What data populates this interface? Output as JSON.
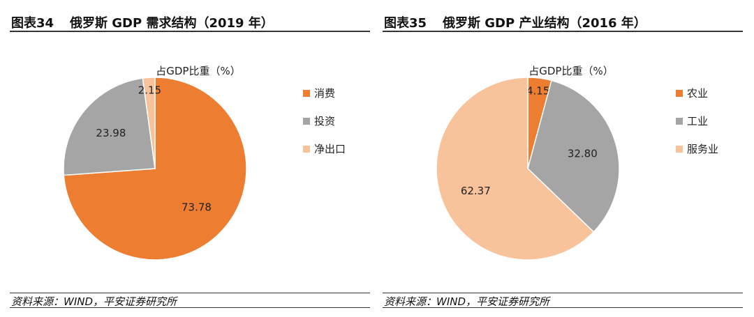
{
  "panels": [
    {
      "figure_label": "图表34",
      "figure_title": "俄罗斯 GDP 需求结构（2019 年）",
      "source": "资料来源：WIND，平安证券研究所"
    },
    {
      "figure_label": "图表35",
      "figure_title": "俄罗斯 GDP 产业结构（2016 年）",
      "source": "资料来源：WIND，平安证券研究所"
    }
  ],
  "chart_data": [
    {
      "type": "pie",
      "title": "占GDP比重（%）",
      "categories": [
        "消费",
        "投资",
        "净出口"
      ],
      "values": [
        73.78,
        23.98,
        2.15
      ],
      "value_labels": [
        "73.78",
        "23.98",
        "2.15"
      ],
      "colors": [
        "#ED7D31",
        "#A5A5A5",
        "#F8C29A"
      ],
      "legend": "right",
      "start": "top",
      "direction": "clockwise"
    },
    {
      "type": "pie",
      "title": "占GDP比重（%）",
      "categories": [
        "农业",
        "工业",
        "服务业"
      ],
      "values": [
        4.15,
        32.8,
        62.37
      ],
      "value_labels": [
        "4.15",
        "32.80",
        "62.37"
      ],
      "colors": [
        "#ED7D31",
        "#A5A5A5",
        "#F8C29A"
      ],
      "legend": "right",
      "start": "top",
      "direction": "clockwise"
    }
  ]
}
